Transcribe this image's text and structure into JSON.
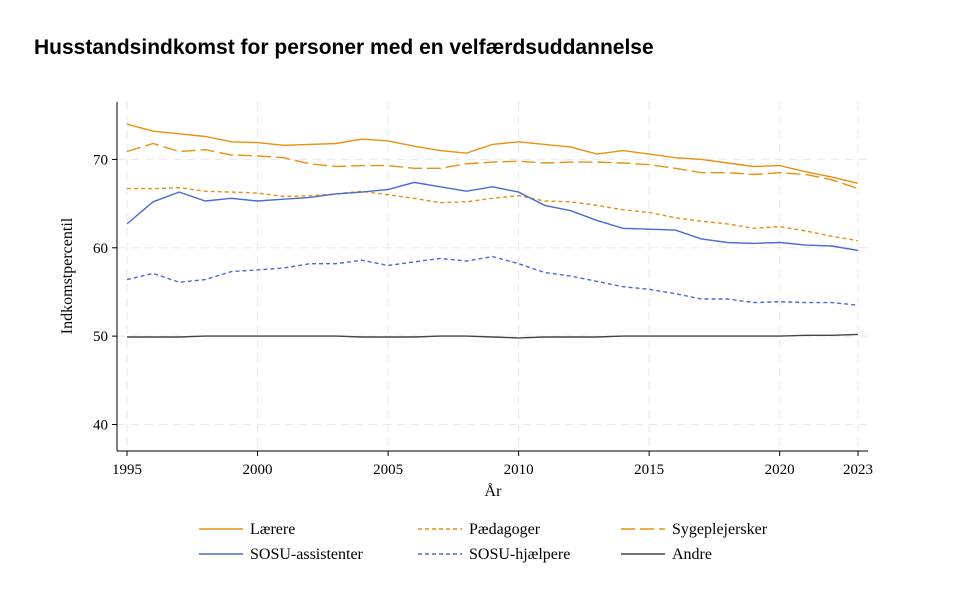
{
  "chart_data": {
    "type": "line",
    "title": "Husstandsindkomst for personer med en velfærdsuddannelse",
    "xlabel": "År",
    "ylabel": "Indkomstpercentil",
    "xlim": [
      1995,
      2023
    ],
    "ylim": [
      37,
      76.5
    ],
    "x_ticks": [
      1995,
      2000,
      2005,
      2010,
      2015,
      2020,
      2023
    ],
    "y_ticks": [
      40,
      50,
      60,
      70
    ],
    "grid": true,
    "legend_position": "bottom",
    "x": [
      1995,
      1996,
      1997,
      1998,
      1999,
      2000,
      2001,
      2002,
      2003,
      2004,
      2005,
      2006,
      2007,
      2008,
      2009,
      2010,
      2011,
      2012,
      2013,
      2014,
      2015,
      2016,
      2017,
      2018,
      2019,
      2020,
      2021,
      2022,
      2023
    ],
    "series": [
      {
        "name": "Lærere",
        "color": "#e8900f",
        "dash": "solid",
        "values": [
          74.0,
          73.2,
          72.9,
          72.6,
          72.0,
          71.9,
          71.6,
          71.7,
          71.8,
          72.3,
          72.1,
          71.5,
          71.0,
          70.7,
          71.7,
          72.0,
          71.7,
          71.4,
          70.6,
          71.0,
          70.6,
          70.2,
          70.0,
          69.6,
          69.2,
          69.3,
          68.6,
          68.0,
          67.3
        ]
      },
      {
        "name": "Pædagoger",
        "color": "#e8900f",
        "dash": "short",
        "values": [
          66.7,
          66.7,
          66.8,
          66.4,
          66.3,
          66.2,
          65.8,
          65.9,
          66.1,
          66.4,
          66.0,
          65.6,
          65.1,
          65.2,
          65.6,
          65.9,
          65.3,
          65.2,
          64.8,
          64.3,
          64.0,
          63.4,
          63.0,
          62.7,
          62.2,
          62.4,
          61.9,
          61.3,
          60.8
        ]
      },
      {
        "name": "Sygeplejersker",
        "color": "#e8900f",
        "dash": "long",
        "values": [
          70.9,
          71.8,
          70.9,
          71.1,
          70.5,
          70.4,
          70.2,
          69.5,
          69.2,
          69.3,
          69.3,
          69.0,
          69.0,
          69.5,
          69.7,
          69.8,
          69.6,
          69.7,
          69.7,
          69.6,
          69.4,
          69.0,
          68.5,
          68.5,
          68.3,
          68.5,
          68.3,
          67.7,
          66.7
        ]
      },
      {
        "name": "SOSU-assistenter",
        "color": "#4a6bd0",
        "dash": "solid",
        "values": [
          62.7,
          65.2,
          66.3,
          65.3,
          65.6,
          65.3,
          65.5,
          65.7,
          66.1,
          66.3,
          66.6,
          67.4,
          66.9,
          66.4,
          66.9,
          66.3,
          64.8,
          64.2,
          63.1,
          62.2,
          62.1,
          62.0,
          61.0,
          60.6,
          60.5,
          60.6,
          60.3,
          60.2,
          59.7
        ]
      },
      {
        "name": "SOSU-hjælpere",
        "color": "#4a6bd0",
        "dash": "short",
        "values": [
          56.4,
          57.1,
          56.1,
          56.4,
          57.3,
          57.5,
          57.7,
          58.2,
          58.2,
          58.6,
          58.0,
          58.4,
          58.8,
          58.5,
          59.0,
          58.2,
          57.2,
          56.8,
          56.2,
          55.6,
          55.3,
          54.8,
          54.2,
          54.2,
          53.8,
          53.9,
          53.8,
          53.8,
          53.5
        ]
      },
      {
        "name": "Andre",
        "color": "#454545",
        "dash": "solid",
        "values": [
          49.9,
          49.9,
          49.9,
          50.0,
          50.0,
          50.0,
          50.0,
          50.0,
          50.0,
          49.9,
          49.9,
          49.9,
          50.0,
          50.0,
          49.9,
          49.8,
          49.9,
          49.9,
          49.9,
          50.0,
          50.0,
          50.0,
          50.0,
          50.0,
          50.0,
          50.0,
          50.1,
          50.1,
          50.2
        ]
      }
    ]
  }
}
